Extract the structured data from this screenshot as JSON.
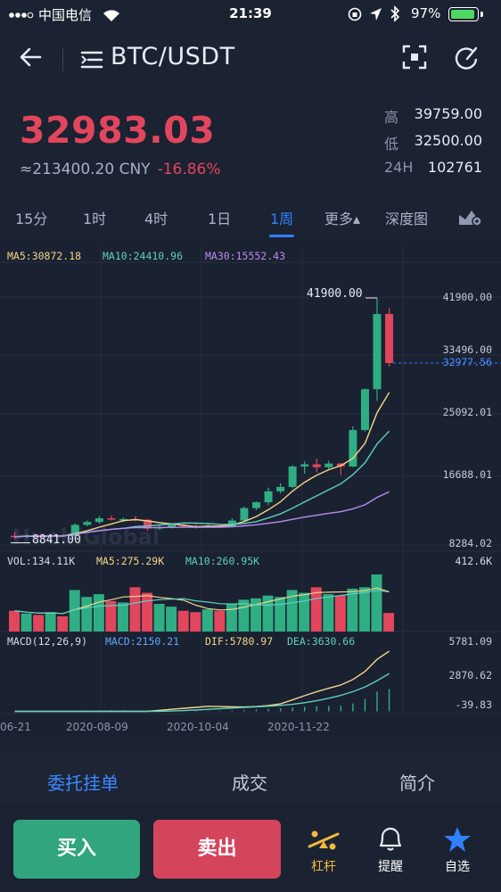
{
  "status_bar": {
    "carrier": "中国电信",
    "time": "21:39",
    "battery_pct": "97%",
    "battery_level": 0.97
  },
  "nav": {
    "title": "BTC/USDT"
  },
  "ticker": {
    "last_price": "32983.03",
    "cny_equiv": "≈213400.20 CNY",
    "change_pct": "-16.86%",
    "stats": [
      {
        "label": "高",
        "value": "39759.00"
      },
      {
        "label": "低",
        "value": "32500.00"
      },
      {
        "label": "24H",
        "value": "102761"
      }
    ]
  },
  "period_tabs": [
    {
      "label": "15分"
    },
    {
      "label": "1时"
    },
    {
      "label": "4时"
    },
    {
      "label": "1日"
    },
    {
      "label": "1周",
      "active": true
    },
    {
      "label": "更多▴"
    },
    {
      "label": "深度图"
    }
  ],
  "indicators": {
    "ma5": "MA5:30872.18",
    "ma10": "MA10:24410.96",
    "ma30": "MA30:15552.43",
    "vol": "VOL:134.11K",
    "vol_ma5": "MA5:275.29K",
    "vol_ma10": "MA10:260.95K",
    "macd_params": "MACD(12,26,9)",
    "macd": "MACD:2150.21",
    "dif": "DIF:5780.97",
    "dea": "DEA:3630.66"
  },
  "axis": {
    "price_ticks": [
      "41900.00",
      "33496.00",
      "25092.01",
      "16688.01",
      "8284.02"
    ],
    "volume_max": "412.6K",
    "macd_ticks": [
      "5781.09",
      "2870.62",
      "-39.83"
    ],
    "high_marker": "41900.00",
    "low_marker": "8841.00",
    "current_price": "32977.56",
    "dates": [
      "06-21",
      "2020-08-09",
      "2020-10-04",
      "2020-11-22"
    ]
  },
  "colors": {
    "up": "#2fae84",
    "down": "#e1465d",
    "accent": "#2f81ff",
    "ma5": "#f2d58a",
    "ma10": "#5fd0c1",
    "ma30": "#b98cf0"
  },
  "chart_data": {
    "type": "candlestick",
    "interval": "1周",
    "symbol": "BTC/USDT",
    "candles": [
      {
        "o": 9300,
        "c": 9150,
        "h": 9800,
        "l": 8850,
        "v": 150
      },
      {
        "o": 9150,
        "c": 9350,
        "h": 9500,
        "l": 9000,
        "v": 130
      },
      {
        "o": 9350,
        "c": 9200,
        "h": 9450,
        "l": 9050,
        "v": 120
      },
      {
        "o": 9200,
        "c": 9400,
        "h": 9500,
        "l": 9100,
        "v": 140
      },
      {
        "o": 9400,
        "c": 9300,
        "h": 9500,
        "l": 9150,
        "v": 110
      },
      {
        "o": 9300,
        "c": 10800,
        "h": 11000,
        "l": 9200,
        "v": 300
      },
      {
        "o": 10800,
        "c": 11200,
        "h": 11400,
        "l": 10600,
        "v": 250
      },
      {
        "o": 11200,
        "c": 11700,
        "h": 12000,
        "l": 11000,
        "v": 270
      },
      {
        "o": 11700,
        "c": 11600,
        "h": 12100,
        "l": 11400,
        "v": 220
      },
      {
        "o": 11600,
        "c": 11600,
        "h": 11800,
        "l": 11200,
        "v": 210
      },
      {
        "o": 11600,
        "c": 11500,
        "h": 12000,
        "l": 11300,
        "v": 320
      },
      {
        "o": 11500,
        "c": 10300,
        "h": 11600,
        "l": 10000,
        "v": 280
      },
      {
        "o": 10300,
        "c": 10500,
        "h": 10800,
        "l": 10100,
        "v": 200
      },
      {
        "o": 10500,
        "c": 10800,
        "h": 11000,
        "l": 10300,
        "v": 180
      },
      {
        "o": 10800,
        "c": 10600,
        "h": 11000,
        "l": 10400,
        "v": 150
      },
      {
        "o": 10600,
        "c": 10500,
        "h": 10900,
        "l": 10300,
        "v": 140
      },
      {
        "o": 10500,
        "c": 10700,
        "h": 10900,
        "l": 10400,
        "v": 160
      },
      {
        "o": 10700,
        "c": 10600,
        "h": 10900,
        "l": 10500,
        "v": 150
      },
      {
        "o": 10600,
        "c": 11400,
        "h": 11700,
        "l": 10500,
        "v": 200
      },
      {
        "o": 11400,
        "c": 13100,
        "h": 13300,
        "l": 11300,
        "v": 230
      },
      {
        "o": 13100,
        "c": 13900,
        "h": 14000,
        "l": 12800,
        "v": 240
      },
      {
        "o": 13900,
        "c": 15400,
        "h": 15900,
        "l": 13500,
        "v": 260
      },
      {
        "o": 15400,
        "c": 16000,
        "h": 16500,
        "l": 15100,
        "v": 250
      },
      {
        "o": 16000,
        "c": 18800,
        "h": 19000,
        "l": 15800,
        "v": 300
      },
      {
        "o": 18800,
        "c": 19100,
        "h": 19500,
        "l": 17800,
        "v": 280
      },
      {
        "o": 19100,
        "c": 18700,
        "h": 19900,
        "l": 18000,
        "v": 320
      },
      {
        "o": 18700,
        "c": 19200,
        "h": 19600,
        "l": 18300,
        "v": 270
      },
      {
        "o": 19200,
        "c": 18800,
        "h": 19300,
        "l": 17600,
        "v": 260
      },
      {
        "o": 18800,
        "c": 23800,
        "h": 24300,
        "l": 18700,
        "v": 310
      },
      {
        "o": 23800,
        "c": 29400,
        "h": 29500,
        "l": 23600,
        "v": 320
      },
      {
        "o": 29400,
        "c": 39700,
        "h": 41900,
        "l": 27800,
        "v": 412.6
      },
      {
        "o": 39700,
        "c": 32983,
        "h": 40500,
        "l": 32500,
        "v": 134.11
      }
    ],
    "macd_hist": [
      -10,
      -8,
      -6,
      -4,
      -2,
      40,
      70,
      100,
      110,
      105,
      95,
      70,
      60,
      55,
      50,
      45,
      48,
      50,
      70,
      120,
      180,
      250,
      300,
      380,
      450,
      500,
      520,
      560,
      760,
      1200,
      1900,
      2150
    ]
  }
}
